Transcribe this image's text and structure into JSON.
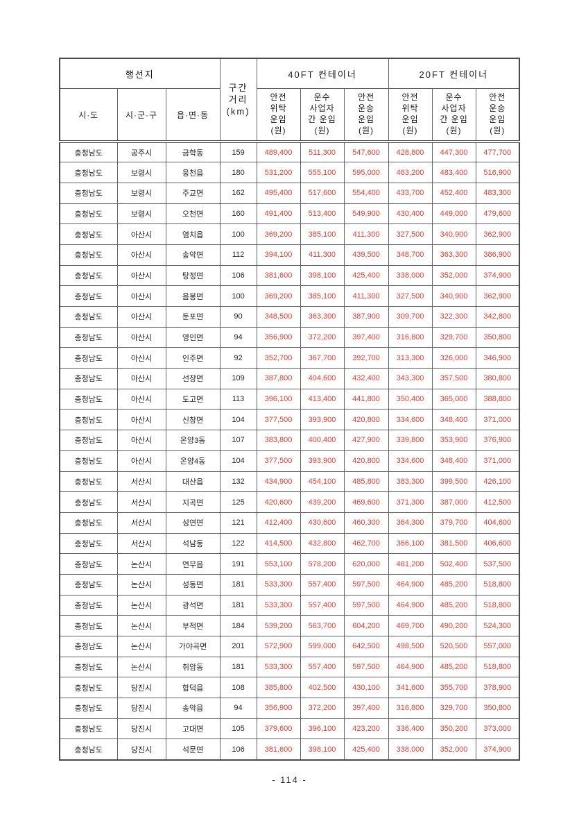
{
  "document": {
    "page_number": "- 114 -"
  },
  "colors": {
    "fare_text": "#e23b2e",
    "grid_line": "#606060",
    "text": "#1a1a1a"
  },
  "table": {
    "header": {
      "destination_group": "행선지",
      "sido": "시·도",
      "sigungu": "시·군·구",
      "eupmyeondong": "읍·면·동",
      "distance": "구간\n거리\n(km)",
      "container_40ft": "40FT 컨테이너",
      "container_20ft": "20FT 컨테이너",
      "fare_cols": [
        "안전\n위탁\n운임\n(원)",
        "운수\n사업자\n간 운임\n(원)",
        "안전\n운송\n운임\n(원)"
      ]
    },
    "rows": [
      [
        "충청남도",
        "공주시",
        "금학동",
        "159",
        "489,400",
        "511,300",
        "547,600",
        "428,800",
        "447,300",
        "477,700"
      ],
      [
        "충청남도",
        "보령시",
        "웅천읍",
        "180",
        "531,200",
        "555,100",
        "595,000",
        "463,200",
        "483,400",
        "516,900"
      ],
      [
        "충청남도",
        "보령시",
        "주교면",
        "162",
        "495,400",
        "517,600",
        "554,400",
        "433,700",
        "452,400",
        "483,300"
      ],
      [
        "충청남도",
        "보령시",
        "오천면",
        "160",
        "491,400",
        "513,400",
        "549,900",
        "430,400",
        "449,000",
        "479,600"
      ],
      [
        "충청남도",
        "아산시",
        "염치읍",
        "100",
        "369,200",
        "385,100",
        "411,300",
        "327,500",
        "340,900",
        "362,900"
      ],
      [
        "충청남도",
        "아산시",
        "송악면",
        "112",
        "394,100",
        "411,300",
        "439,500",
        "348,700",
        "363,300",
        "386,900"
      ],
      [
        "충청남도",
        "아산시",
        "탕정면",
        "106",
        "381,600",
        "398,100",
        "425,400",
        "338,000",
        "352,000",
        "374,900"
      ],
      [
        "충청남도",
        "아산시",
        "음봉면",
        "100",
        "369,200",
        "385,100",
        "411,300",
        "327,500",
        "340,900",
        "362,900"
      ],
      [
        "충청남도",
        "아산시",
        "둔포면",
        "90",
        "348,500",
        "363,300",
        "387,900",
        "309,700",
        "322,300",
        "342,800"
      ],
      [
        "충청남도",
        "아산시",
        "영인면",
        "94",
        "356,900",
        "372,200",
        "397,400",
        "316,800",
        "329,700",
        "350,800"
      ],
      [
        "충청남도",
        "아산시",
        "인주면",
        "92",
        "352,700",
        "367,700",
        "392,700",
        "313,300",
        "326,000",
        "346,900"
      ],
      [
        "충청남도",
        "아산시",
        "선장면",
        "109",
        "387,800",
        "404,600",
        "432,400",
        "343,300",
        "357,500",
        "380,800"
      ],
      [
        "충청남도",
        "아산시",
        "도고면",
        "113",
        "396,100",
        "413,400",
        "441,800",
        "350,400",
        "365,000",
        "388,800"
      ],
      [
        "충청남도",
        "아산시",
        "신창면",
        "104",
        "377,500",
        "393,900",
        "420,800",
        "334,600",
        "348,400",
        "371,000"
      ],
      [
        "충청남도",
        "아산시",
        "온양3동",
        "107",
        "383,800",
        "400,400",
        "427,900",
        "339,800",
        "353,900",
        "376,900"
      ],
      [
        "충청남도",
        "아산시",
        "온양4동",
        "104",
        "377,500",
        "393,900",
        "420,800",
        "334,600",
        "348,400",
        "371,000"
      ],
      [
        "충청남도",
        "서산시",
        "대산읍",
        "132",
        "434,900",
        "454,100",
        "485,800",
        "383,300",
        "399,500",
        "426,100"
      ],
      [
        "충청남도",
        "서산시",
        "지곡면",
        "125",
        "420,600",
        "439,200",
        "469,600",
        "371,300",
        "387,000",
        "412,500"
      ],
      [
        "충청남도",
        "서산시",
        "성연면",
        "121",
        "412,400",
        "430,600",
        "460,300",
        "364,300",
        "379,700",
        "404,600"
      ],
      [
        "충청남도",
        "서산시",
        "석남동",
        "122",
        "414,500",
        "432,800",
        "462,700",
        "366,100",
        "381,500",
        "406,600"
      ],
      [
        "충청남도",
        "논산시",
        "연무읍",
        "191",
        "553,100",
        "578,200",
        "620,000",
        "481,200",
        "502,400",
        "537,500"
      ],
      [
        "충청남도",
        "논산시",
        "성동면",
        "181",
        "533,300",
        "557,400",
        "597,500",
        "464,900",
        "485,200",
        "518,800"
      ],
      [
        "충청남도",
        "논산시",
        "광석면",
        "181",
        "533,300",
        "557,400",
        "597,500",
        "464,900",
        "485,200",
        "518,800"
      ],
      [
        "충청남도",
        "논산시",
        "부적면",
        "184",
        "539,200",
        "563,700",
        "604,200",
        "469,700",
        "490,200",
        "524,300"
      ],
      [
        "충청남도",
        "논산시",
        "가야곡면",
        "201",
        "572,900",
        "599,000",
        "642,500",
        "498,500",
        "520,500",
        "557,000"
      ],
      [
        "충청남도",
        "논산시",
        "취암동",
        "181",
        "533,300",
        "557,400",
        "597,500",
        "464,900",
        "485,200",
        "518,800"
      ],
      [
        "충청남도",
        "당진시",
        "합덕읍",
        "108",
        "385,800",
        "402,500",
        "430,100",
        "341,600",
        "355,700",
        "378,900"
      ],
      [
        "충청남도",
        "당진시",
        "송악읍",
        "94",
        "356,900",
        "372,200",
        "397,400",
        "316,800",
        "329,700",
        "350,800"
      ],
      [
        "충청남도",
        "당진시",
        "고대면",
        "105",
        "379,600",
        "396,100",
        "423,200",
        "336,400",
        "350,200",
        "373,000"
      ],
      [
        "충청남도",
        "당진시",
        "석문면",
        "106",
        "381,600",
        "398,100",
        "425,400",
        "338,000",
        "352,000",
        "374,900"
      ]
    ]
  }
}
